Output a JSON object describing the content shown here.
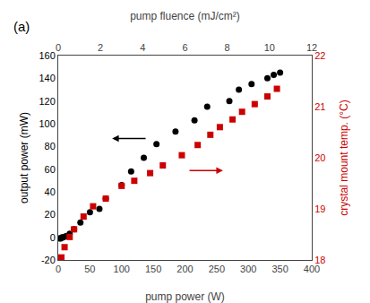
{
  "chart_data": {
    "type": "scatter",
    "xlabel": "pump power (W)",
    "x2label": "pump fluence (mJ/cm²)",
    "ylabel": "output power (mW)",
    "y2label": "crystal mount temp. (°C)",
    "xlim": [
      0,
      400
    ],
    "xticks": [
      0,
      50,
      100,
      150,
      200,
      250,
      300,
      350,
      400
    ],
    "x2lim": [
      0,
      12
    ],
    "x2ticks": [
      0,
      2,
      4,
      6,
      8,
      10,
      12
    ],
    "ylim": [
      -20,
      160
    ],
    "yticks": [
      -20,
      0,
      20,
      40,
      60,
      80,
      100,
      120,
      140,
      160
    ],
    "y2lim": [
      18,
      22
    ],
    "y2ticks": [
      18,
      19,
      20,
      21,
      22
    ],
    "grid": false,
    "series": [
      {
        "color": "#000000",
        "marker": "circle",
        "x": [
          2,
          4,
          6,
          8,
          12,
          18,
          25,
          35,
          50,
          65,
          75,
          100,
          115,
          135,
          155,
          185,
          215,
          235,
          270,
          285,
          305,
          330,
          340,
          350
        ],
        "values": [
          -1,
          -1,
          0,
          0,
          1,
          3,
          7,
          13,
          22,
          25,
          34,
          46,
          58,
          70,
          82,
          93,
          103,
          115,
          120,
          130,
          135,
          140,
          143,
          145
        ]
      },
      {
        "color": "#cc0000",
        "marker": "square",
        "axis": "y2",
        "x": [
          5,
          10,
          18,
          25,
          40,
          55,
          75,
          100,
          120,
          145,
          165,
          195,
          220,
          240,
          255,
          275,
          290,
          310,
          330,
          345
        ],
        "values": [
          18.05,
          18.25,
          18.45,
          18.6,
          18.85,
          19.05,
          19.2,
          19.45,
          19.55,
          19.7,
          19.85,
          20.05,
          20.25,
          20.45,
          20.6,
          20.75,
          20.9,
          21.05,
          21.2,
          21.35
        ]
      }
    ],
    "arrows": [
      {
        "x_start": 140,
        "x_end": 85,
        "y": 87,
        "color": "#000000"
      },
      {
        "x_start": 205,
        "x_end": 260,
        "y": 19.75,
        "axis": "y2",
        "color": "#cc0000"
      }
    ],
    "annotations": [
      {
        "text": "(a)"
      }
    ]
  }
}
